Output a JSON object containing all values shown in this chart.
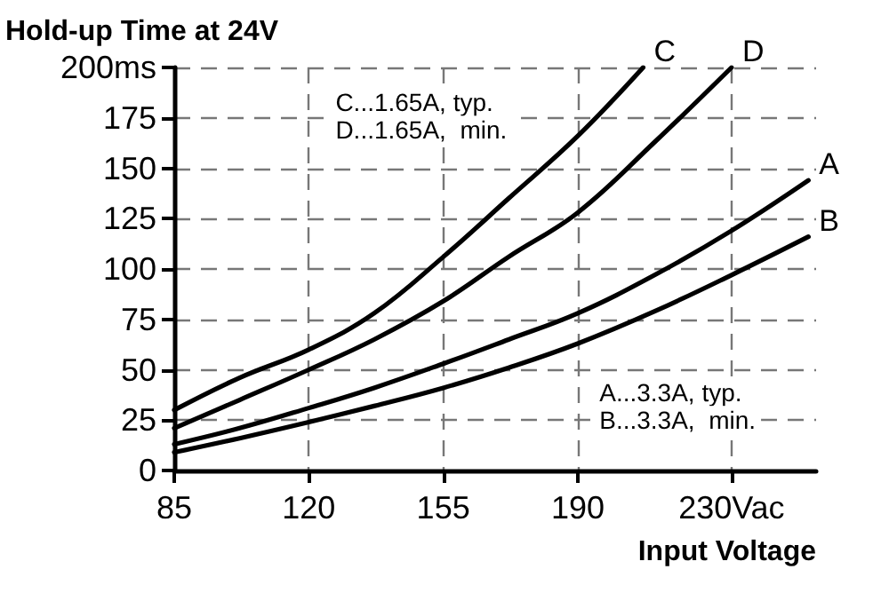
{
  "chart_data": {
    "type": "line",
    "ylabel": "Hold-up Time at 24V",
    "xlabel": "Input Voltage",
    "series": [
      {
        "name": "C",
        "color": "#000000",
        "x": [
          85,
          102,
          120,
          137,
          155,
          172,
          190,
          207
        ],
        "values": [
          30,
          46,
          60,
          78,
          106,
          135,
          166,
          200
        ]
      },
      {
        "name": "D",
        "color": "#000000",
        "x": [
          85,
          102,
          120,
          137,
          155,
          172,
          190,
          210,
          230
        ],
        "values": [
          21,
          35,
          50,
          65,
          84,
          106,
          128,
          163,
          200
        ]
      },
      {
        "name": "A",
        "color": "#000000",
        "x": [
          85,
          102,
          120,
          137,
          155,
          172,
          190,
          210,
          230,
          250
        ],
        "values": [
          13,
          21,
          31,
          41,
          53,
          65,
          78,
          97,
          119,
          144
        ]
      },
      {
        "name": "B",
        "color": "#000000",
        "x": [
          85,
          102,
          120,
          137,
          155,
          172,
          190,
          210,
          230,
          250
        ],
        "values": [
          9,
          16,
          24,
          32,
          41,
          51,
          63,
          79,
          97,
          116
        ]
      }
    ],
    "annotations": [
      "C...1.65A, typ.",
      "D...1.65A,  min.",
      "A...3.3A, typ.",
      "B...3.3A,  min."
    ],
    "xlim": [
      85,
      252
    ],
    "ylim": [
      0,
      200
    ],
    "xticks": [
      85,
      120,
      155,
      190,
      {
        "value": 230,
        "label": "230Vac"
      }
    ],
    "yticks": [
      0,
      25,
      50,
      75,
      100,
      125,
      150,
      175,
      {
        "value": 200,
        "label": "200ms"
      }
    ],
    "grid": true,
    "marker": "none",
    "line_style": "solid",
    "legend": false
  }
}
